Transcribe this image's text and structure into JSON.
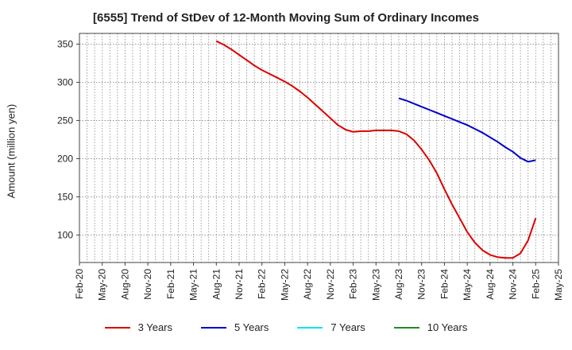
{
  "chart_data": {
    "type": "line",
    "title": "[6555]  Trend of StDev of 12-Month Moving Sum of Ordinary Incomes",
    "ylabel": "Amount (million yen)",
    "xlabel": "",
    "ylim": [
      64,
      364
    ],
    "y_ticks": [
      100,
      150,
      200,
      250,
      300,
      350
    ],
    "x_ticks": [
      "Feb-20",
      "May-20",
      "Aug-20",
      "Nov-20",
      "Feb-21",
      "May-21",
      "Aug-21",
      "Nov-21",
      "Feb-22",
      "May-22",
      "Aug-22",
      "Nov-22",
      "Feb-23",
      "May-23",
      "Aug-23",
      "Nov-23",
      "Feb-24",
      "May-24",
      "Aug-24",
      "Nov-24",
      "Feb-25",
      "May-25"
    ],
    "grid": true,
    "legend_position": "bottom",
    "series": [
      {
        "name": "3 Years",
        "color": "#dd0000",
        "points": [
          [
            "Aug-21",
            354
          ],
          [
            "Sep-21",
            349
          ],
          [
            "Oct-21",
            343
          ],
          [
            "Nov-21",
            336
          ],
          [
            "Dec-21",
            329
          ],
          [
            "Jan-22",
            322
          ],
          [
            "Feb-22",
            316
          ],
          [
            "Mar-22",
            311
          ],
          [
            "Apr-22",
            306
          ],
          [
            "May-22",
            301
          ],
          [
            "Jun-22",
            295
          ],
          [
            "Jul-22",
            288
          ],
          [
            "Aug-22",
            280
          ],
          [
            "Sep-22",
            271
          ],
          [
            "Oct-22",
            262
          ],
          [
            "Nov-22",
            253
          ],
          [
            "Dec-22",
            244
          ],
          [
            "Jan-23",
            238
          ],
          [
            "Feb-23",
            235
          ],
          [
            "Mar-23",
            236
          ],
          [
            "Apr-23",
            236
          ],
          [
            "May-23",
            237
          ],
          [
            "Jun-23",
            237
          ],
          [
            "Jul-23",
            237
          ],
          [
            "Aug-23",
            236
          ],
          [
            "Sep-23",
            232
          ],
          [
            "Oct-23",
            224
          ],
          [
            "Nov-23",
            212
          ],
          [
            "Dec-23",
            198
          ],
          [
            "Jan-24",
            181
          ],
          [
            "Feb-24",
            160
          ],
          [
            "Mar-24",
            140
          ],
          [
            "Apr-24",
            122
          ],
          [
            "May-24",
            104
          ],
          [
            "Jun-24",
            90
          ],
          [
            "Jul-24",
            80
          ],
          [
            "Aug-24",
            74
          ],
          [
            "Sep-24",
            71
          ],
          [
            "Oct-24",
            70
          ],
          [
            "Nov-24",
            70
          ],
          [
            "Dec-24",
            76
          ],
          [
            "Jan-25",
            93
          ],
          [
            "Feb-25",
            122
          ]
        ]
      },
      {
        "name": "5 Years",
        "color": "#0000cc",
        "points": [
          [
            "Aug-23",
            279
          ],
          [
            "Sep-23",
            276
          ],
          [
            "Oct-23",
            272
          ],
          [
            "Nov-23",
            268
          ],
          [
            "Dec-23",
            264
          ],
          [
            "Jan-24",
            260
          ],
          [
            "Feb-24",
            256
          ],
          [
            "Mar-24",
            252
          ],
          [
            "Apr-24",
            248
          ],
          [
            "May-24",
            244
          ],
          [
            "Jun-24",
            239
          ],
          [
            "Jul-24",
            234
          ],
          [
            "Aug-24",
            228
          ],
          [
            "Sep-24",
            222
          ],
          [
            "Oct-24",
            215
          ],
          [
            "Nov-24",
            209
          ],
          [
            "Dec-24",
            201
          ],
          [
            "Jan-25",
            196
          ],
          [
            "Feb-25",
            198
          ]
        ]
      },
      {
        "name": "7 Years",
        "color": "#00e5ee",
        "points": []
      },
      {
        "name": "10 Years",
        "color": "#228b22",
        "points": []
      }
    ]
  }
}
